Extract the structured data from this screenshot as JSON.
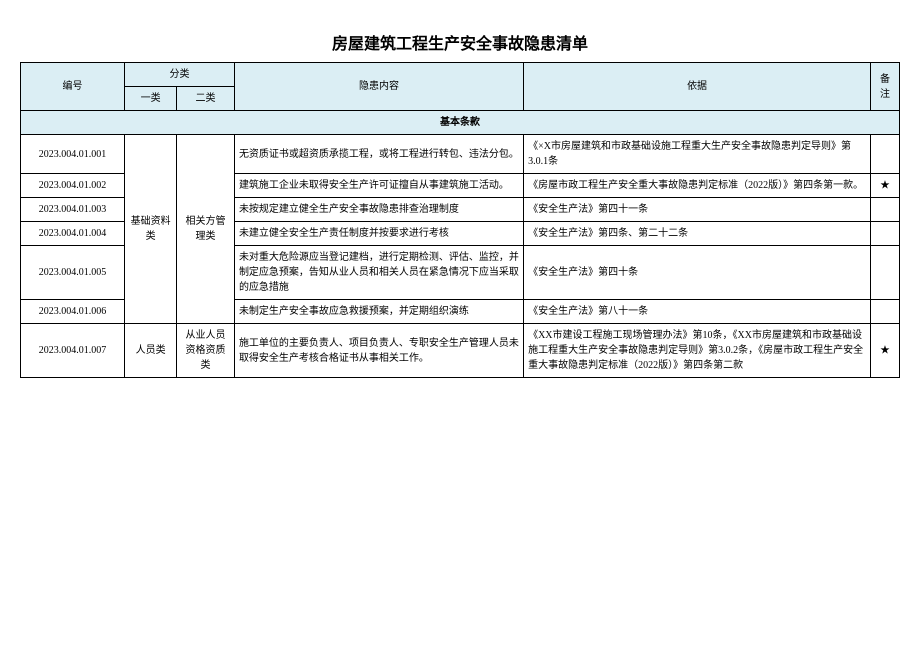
{
  "title": "房屋建筑工程生产安全事故隐患清单",
  "header": {
    "id": "编号",
    "category": "分类",
    "cat1": "一类",
    "cat2": "二类",
    "risk": "隐患内容",
    "basis": "依据",
    "note": "备注"
  },
  "section": "基本条款",
  "cat1_group1": "基础资料类",
  "cat2_group1": "相关方管理类",
  "cat1_group2": "人员类",
  "cat2_group2": "从业人员资格资质类",
  "rows": [
    {
      "id": "2023.004.01.001",
      "risk": "无资质证书或超资质承揽工程，或将工程进行转包、违法分包。",
      "basis": "《×X市房屋建筑和市政基础设施工程重大生产安全事故隐患判定导则》第3.0.1条",
      "note": ""
    },
    {
      "id": "2023.004.01.002",
      "risk": "建筑施工企业未取得安全生产许可证擅自从事建筑施工活动。",
      "basis": "《房屋市政工程生产安全重大事故隐患判定标准（2022版）》第四条第一款。",
      "note": "★"
    },
    {
      "id": "2023.004.01.003",
      "risk": "未按规定建立健全生产安全事故隐患排查治理制度",
      "basis": "《安全生产法》第四十一条",
      "note": ""
    },
    {
      "id": "2023.004.01.004",
      "risk": "未建立健全安全生产责任制度并按要求进行考核",
      "basis": "《安全生产法》第四条、第二十二条",
      "note": ""
    },
    {
      "id": "2023.004.01.005",
      "risk": "未对重大危险源应当登记建档，进行定期检测、评估、监控，并制定应急预案，告知从业人员和相关人员在紧急情况下应当采取的应急措施",
      "basis": "《安全生产法》第四十条",
      "note": ""
    },
    {
      "id": "2023.004.01.006",
      "risk": "未制定生产安全事故应急救援预案，并定期组织演练",
      "basis": "《安全生产法》第八十一条",
      "note": ""
    },
    {
      "id": "2023.004.01.007",
      "risk": "施工单位的主要负责人、项目负责人、专职安全生产管理人员未取得安全生产考核合格证书从事相关工作。",
      "basis": "《XX市建设工程施工现场管理办法》第10条，《XX市房屋建筑和市政基础设施工程重大生产安全事故隐患判定导则》第3.0.2条，《房屋市政工程生产安全重大事故隐患判定标准（2022版）》第四条第二款",
      "note": "★"
    }
  ]
}
